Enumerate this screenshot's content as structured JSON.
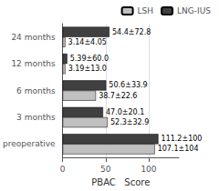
{
  "chart_data": {
    "type": "bar",
    "orientation": "horizontal",
    "xlabel": "PBAC   Score",
    "categories": [
      "preoperative",
      "3 months",
      "6 months",
      "12 months",
      "24 months"
    ],
    "series": [
      {
        "name": "LSH",
        "color": "#c0c0c0",
        "values": [
          107.1,
          52.3,
          38.7,
          3.19,
          3.14
        ],
        "value_labels": [
          "107.1±104",
          "52.3±32.9",
          "38.7±22.6",
          "3.19±13.0",
          "3.14±4.05"
        ]
      },
      {
        "name": "LNG-IUS",
        "color": "#404040",
        "values": [
          111.2,
          47.0,
          50.6,
          5.39,
          54.4
        ],
        "value_labels": [
          "111.2±100",
          "47.0±20.1",
          "50.6±33.9",
          "5.39±60.0",
          "54.4±72.8"
        ]
      }
    ],
    "xlim": [
      0,
      135
    ],
    "xticks": [
      0,
      50,
      100
    ],
    "grid": true,
    "legend": "upper right",
    "data_labels": true
  }
}
